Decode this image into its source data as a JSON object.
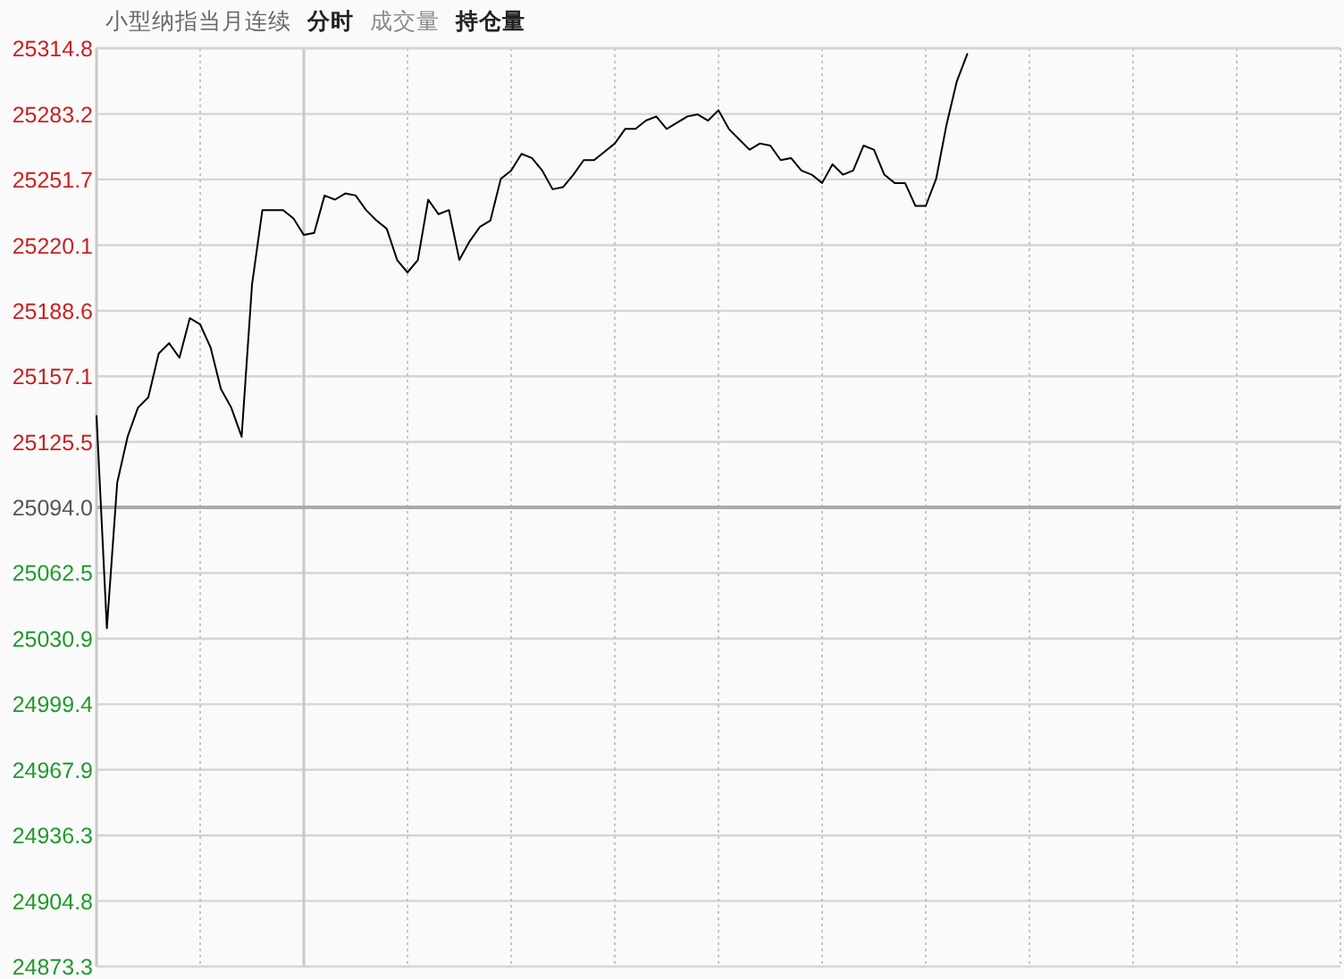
{
  "chart_data": {
    "type": "line",
    "title": "小型纳指当月连续",
    "annotations": [
      "分时",
      "成交量",
      "持仓量"
    ],
    "categories": [
      null,
      null,
      null,
      null,
      null,
      null,
      null,
      null,
      null,
      null,
      null,
      null,
      null,
      null,
      null,
      null,
      null,
      null,
      null,
      null,
      null,
      null,
      null,
      null,
      null,
      null,
      null,
      null,
      null,
      null,
      null,
      null,
      null,
      null,
      null,
      null,
      null,
      null,
      null,
      null,
      null,
      null,
      null,
      null,
      null,
      null,
      null,
      null,
      null,
      null,
      null,
      null,
      null,
      null,
      null,
      null,
      null,
      null,
      null,
      null,
      null,
      null,
      null,
      null,
      null,
      null,
      null,
      null,
      null,
      null,
      null,
      null,
      null,
      null,
      null,
      null,
      null,
      null,
      null,
      null,
      null,
      null,
      null,
      null,
      null,
      null,
      null,
      null,
      null,
      null,
      null,
      null,
      null,
      null,
      null,
      null,
      null,
      null,
      null,
      null,
      null,
      null,
      null,
      null,
      null,
      null,
      null,
      null,
      null,
      null,
      null,
      null,
      null,
      null,
      null,
      null,
      null,
      null,
      null,
      null,
      null
    ],
    "series": [
      {
        "color": "#000000",
        "values": [
          25138,
          25036,
          25106,
          25128,
          25142,
          25147,
          25168,
          25173,
          25166,
          25185,
          25182,
          25171,
          25151,
          25142,
          25128,
          25201,
          25237,
          25237,
          25237,
          25233,
          25225,
          25226,
          25244,
          25242,
          25245,
          25244,
          25237,
          25232,
          25228,
          25213,
          25207,
          25213,
          25242,
          25235,
          25237,
          25213,
          25222,
          25229,
          25232,
          25252,
          25256,
          25264,
          25262,
          25256,
          25247,
          25248,
          25254,
          25261,
          25261,
          25265,
          25269,
          25276,
          25276,
          25280,
          25282,
          25276,
          25279,
          25282,
          25283,
          25280,
          25285,
          25276,
          25271,
          25266,
          25269,
          25268,
          25261,
          25262,
          25256,
          25254,
          25250,
          25259,
          25254,
          25256,
          25268,
          25266,
          25254,
          25250,
          25250,
          25239,
          25239,
          25252,
          25278,
          25299,
          25312,
          null,
          null,
          null,
          null,
          null,
          null,
          null,
          null,
          null,
          null,
          null,
          null,
          null,
          null,
          null,
          null,
          null,
          null,
          null,
          null,
          null,
          null,
          null,
          null,
          null,
          null,
          null,
          null,
          null,
          null,
          null,
          null,
          null,
          null,
          null,
          null
        ]
      }
    ],
    "ylim": [
      24873.3,
      25314.8
    ],
    "yticks": [
      25314.8,
      25283.2,
      25251.7,
      25220.1,
      25188.6,
      25157.1,
      25125.5,
      {
        "value": 25094.0,
        "label": "25094.0"
      },
      25062.5,
      25030.9,
      24999.4,
      24967.9,
      24936.3,
      24904.8,
      24873.3
    ],
    "tick_labels": "y",
    "grid": true,
    "marker": "none",
    "line_style": "solid",
    "ref_lines": [
      {
        "axis": "y",
        "value": 25094.0,
        "color": "#aaaaaa"
      }
    ]
  }
}
